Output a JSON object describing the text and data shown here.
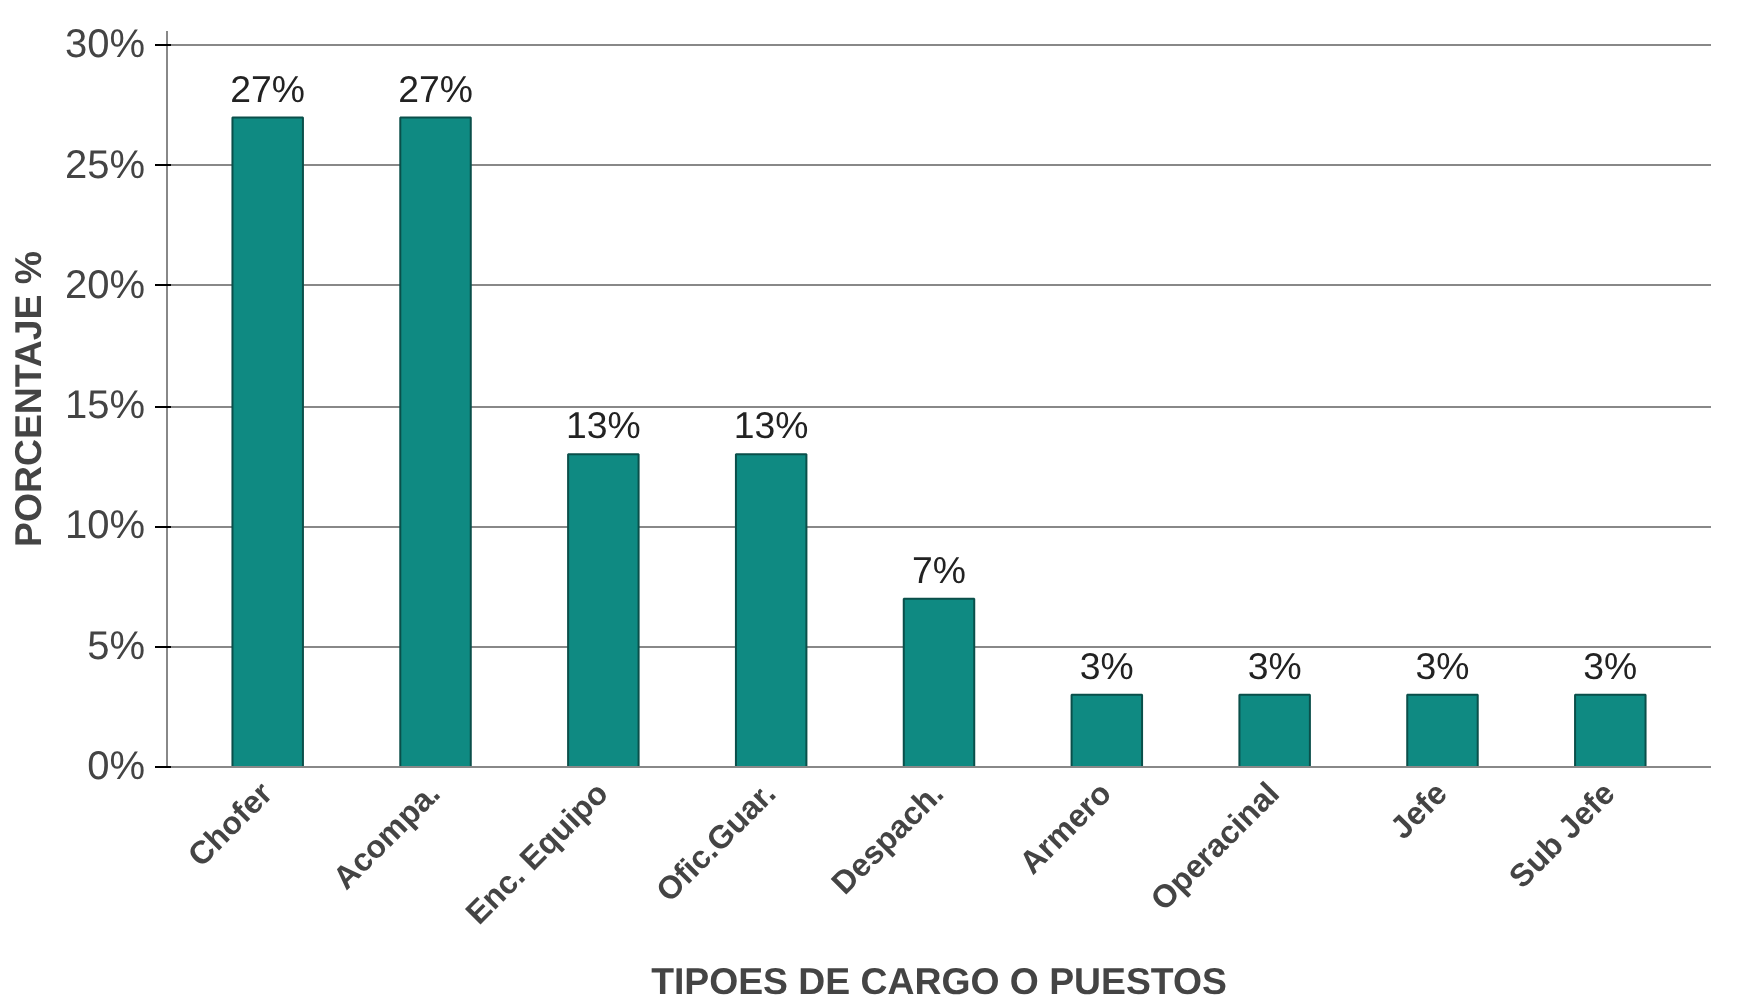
{
  "chart_data": {
    "type": "bar",
    "xlabel": "TIPOES DE CARGO O PUESTOS",
    "ylabel": "PORCENTAJE %",
    "categories": [
      "Chofer",
      "Acompa.",
      "Enc. Equipo",
      "Ofic.Guar.",
      "Despach.",
      "Armero",
      "Operacinal",
      "Jefe",
      "Sub Jefe"
    ],
    "values": [
      27,
      27,
      13,
      13,
      7,
      3,
      3,
      3,
      3
    ],
    "color": "#0f8a82",
    "value_labels": [
      "27%",
      "27%",
      "13%",
      "13%",
      "7%",
      "3%",
      "3%",
      "3%",
      "3%"
    ],
    "ylim": [
      0,
      30
    ],
    "yticks": [
      {
        "value": 0,
        "label": "0%"
      },
      {
        "value": 5,
        "label": "5%"
      },
      {
        "value": 10,
        "label": "10%"
      },
      {
        "value": 15,
        "label": "15%"
      },
      {
        "value": 20,
        "label": "20%"
      },
      {
        "value": 25,
        "label": "25%"
      },
      {
        "value": 30,
        "label": "30%"
      }
    ],
    "grid": "y"
  }
}
